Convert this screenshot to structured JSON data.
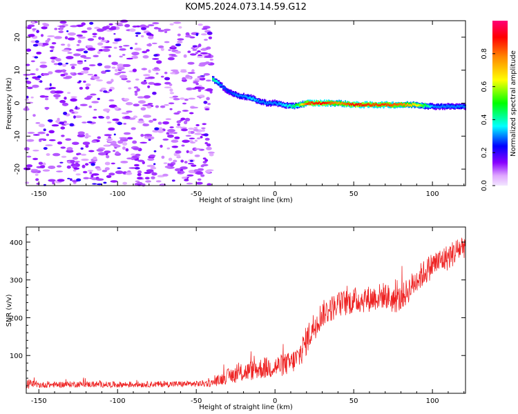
{
  "chart_data": [
    {
      "type": "heatmap",
      "title": "KOM5.2024.073.14.59.G12",
      "xlabel": "Height of straight line (km)",
      "ylabel": "Frequency (Hz)",
      "xlim": [
        -158,
        121
      ],
      "ylim": [
        -25,
        25
      ],
      "xticks": [
        -150,
        -100,
        -50,
        0,
        50,
        100
      ],
      "yticks": [
        -20,
        -10,
        0,
        10,
        20
      ],
      "colorbar": {
        "label": "Normalized spectral amplitude",
        "range": [
          0,
          1
        ],
        "ticks": [
          "0.0",
          "0.2",
          "0.4",
          "0.6",
          "0.8"
        ],
        "colormap": [
          "#e0a8ff",
          "#8800ff",
          "#0000ff",
          "#00ffff",
          "#00ff00",
          "#ffff00",
          "#ff8800",
          "#ff0000",
          "#ff0077"
        ]
      },
      "noise_region": {
        "x_range": [
          -158,
          -40
        ],
        "amplitude_approx": 0.1
      },
      "signal_track": {
        "x": [
          -40,
          -35,
          -30,
          -25,
          -20,
          -15,
          -10,
          -5,
          0,
          5,
          10,
          15,
          20,
          30,
          40,
          50,
          60,
          70,
          80,
          90,
          100,
          110,
          121
        ],
        "frequency": [
          7.5,
          5.5,
          3.5,
          2.5,
          2,
          1.5,
          0.5,
          0,
          0,
          -0.5,
          -1,
          -0.5,
          0,
          0,
          0,
          -0.5,
          -0.5,
          -0.5,
          -0.5,
          -0.5,
          -1,
          -1,
          -1
        ],
        "amplitude": [
          0.45,
          0.3,
          0.25,
          0.3,
          0.3,
          0.35,
          0.3,
          0.3,
          0.3,
          0.35,
          0.4,
          0.55,
          0.85,
          0.9,
          0.75,
          0.9,
          0.85,
          0.85,
          0.8,
          0.65,
          0.3,
          0.3,
          0.3
        ]
      }
    },
    {
      "type": "line",
      "xlabel": "Height of straight line (km)",
      "ylabel": "SNR (v/v)",
      "xlim": [
        -158,
        121
      ],
      "ylim": [
        0,
        440
      ],
      "xticks": [
        -150,
        -100,
        -50,
        0,
        50,
        100
      ],
      "yticks": [
        100,
        200,
        300,
        400
      ],
      "color": "#ee2222",
      "series": [
        {
          "x": [
            -158,
            -150,
            -125,
            -100,
            -75,
            -50,
            -40,
            -30,
            -20,
            -10,
            0,
            10,
            15,
            20,
            25,
            30,
            40,
            50,
            60,
            70,
            75,
            80,
            90,
            100,
            110,
            121
          ],
          "values": [
            25,
            22,
            24,
            23,
            24,
            25,
            27,
            45,
            55,
            65,
            70,
            80,
            95,
            140,
            180,
            210,
            235,
            245,
            250,
            260,
            245,
            250,
            300,
            340,
            360,
            395
          ],
          "noise_amp": [
            15,
            8,
            8,
            8,
            8,
            8,
            10,
            20,
            25,
            28,
            30,
            30,
            35,
            40,
            40,
            35,
            35,
            35,
            35,
            35,
            35,
            35,
            35,
            35,
            35,
            35
          ]
        }
      ]
    }
  ]
}
